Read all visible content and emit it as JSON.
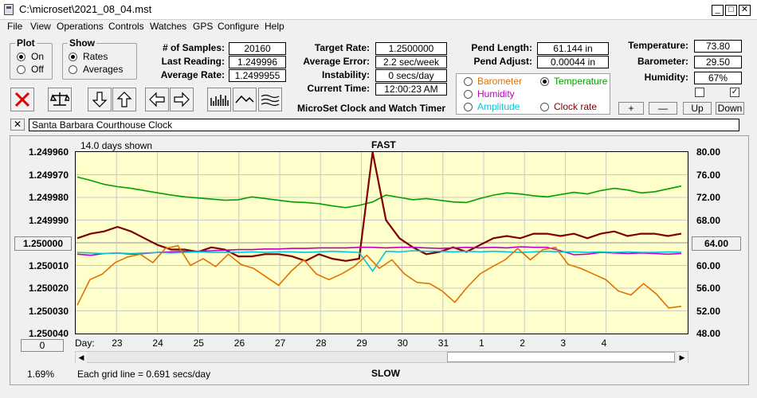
{
  "window": {
    "title": "C:\\microset\\2021_08_04.mst"
  },
  "menu": [
    "File",
    "View",
    "Operations",
    "Controls",
    "Watches",
    "GPS",
    "Configure",
    "Help"
  ],
  "plot_group": {
    "title": "Plot",
    "on": "On",
    "off": "Off",
    "selected": "On"
  },
  "show_group": {
    "title": "Show",
    "rates": "Rates",
    "averages": "Averages",
    "selected": "Rates"
  },
  "stats": {
    "samples_label": "# of Samples:",
    "samples": "20160",
    "last_reading_label": "Last Reading:",
    "last_reading": "1.249996",
    "avg_rate_label": "Average Rate:",
    "avg_rate": "1.2499955",
    "target_rate_label": "Target Rate:",
    "target_rate": "1.2500000",
    "avg_error_label": "Average Error:",
    "avg_error": "2.2 sec/week",
    "instability_label": "Instability:",
    "instability": "0 secs/day",
    "current_time_label": "Current Time:",
    "current_time": "12:00:23 AM",
    "pend_length_label": "Pend Length:",
    "pend_length": "61.144 in",
    "pend_adjust_label": "Pend Adjust:",
    "pend_adjust": "0.00044 in",
    "temperature_label": "Temperature:",
    "temperature": "73.80",
    "barometer_label": "Barometer:",
    "barometer": "29.50",
    "humidity_label": "Humidity:",
    "humidity": "67%"
  },
  "app_subtitle": "MicroSet Clock and Watch Timer",
  "sensor_options": {
    "barometer": "Barometer",
    "temperature": "Temperature",
    "humidity": "Humidity",
    "amplitude": "Amplitude",
    "clock_rate": "Clock rate",
    "selected": "Temperature",
    "colors": {
      "barometer": "#e07000",
      "temperature": "#00a000",
      "humidity": "#c000c0",
      "amplitude": "#00c8d8",
      "clock_rate": "#800000"
    }
  },
  "adjust_buttons": {
    "plus": "+",
    "minus": "—",
    "up": "Up",
    "down": "Down"
  },
  "checkboxes": {
    "left_checked": false,
    "right_checked": true
  },
  "watch_name": "Santa Barbara Courthouse Clock",
  "chart_header": {
    "days_shown": "14.0 days shown",
    "fast": "FAST",
    "slow": "SLOW",
    "percent": "1.69%",
    "grid_note": "Each grid line = 0.691 secs/day",
    "day_label": "Day:",
    "zero_button": "0"
  },
  "chart_data": {
    "type": "line",
    "x_label": "Day:",
    "x_ticks": [
      "23",
      "24",
      "25",
      "26",
      "27",
      "28",
      "29",
      "30",
      "31",
      "1",
      "2",
      "3",
      "4"
    ],
    "left_axis": {
      "ticks": [
        "1.249960",
        "1.249970",
        "1.249980",
        "1.249990",
        "1.250000",
        "1.250010",
        "1.250020",
        "1.250030",
        "1.250040"
      ],
      "center_button": "1.250000",
      "range": [
        1.24996,
        1.25004
      ],
      "inverted": true
    },
    "right_axis": {
      "ticks": [
        "80.00",
        "76.00",
        "72.00",
        "68.00",
        "64.00",
        "60.00",
        "56.00",
        "52.00",
        "48.00"
      ],
      "center_button": "64.00",
      "range": [
        48,
        80
      ]
    },
    "series": [
      {
        "name": "Temperature",
        "color": "#00a000",
        "axis": "right",
        "values": [
          75.6,
          75.0,
          74.3,
          73.9,
          73.6,
          73.2,
          72.8,
          72.4,
          72.1,
          71.9,
          71.7,
          71.5,
          71.6,
          72.1,
          71.8,
          71.5,
          71.2,
          71.1,
          70.9,
          70.5,
          70.2,
          70.6,
          71.2,
          72.4,
          72.0,
          71.6,
          71.8,
          71.5,
          71.2,
          71.1,
          71.8,
          72.4,
          72.8,
          72.6,
          72.3,
          72.1,
          72.5,
          72.9,
          72.6,
          73.2,
          73.6,
          73.3,
          72.8,
          73.0,
          73.5,
          74.0
        ]
      },
      {
        "name": "Clock rate",
        "color": "#800000",
        "axis": "left",
        "values": [
          1.249998,
          1.249996,
          1.249995,
          1.249993,
          1.249995,
          1.249998,
          1.250001,
          1.250003,
          1.250003,
          1.250004,
          1.250002,
          1.250003,
          1.250006,
          1.250006,
          1.250005,
          1.250005,
          1.250006,
          1.250008,
          1.250005,
          1.250007,
          1.250008,
          1.250007,
          1.24996,
          1.24999,
          1.249998,
          1.250002,
          1.250005,
          1.250004,
          1.250002,
          1.250004,
          1.250001,
          1.249998,
          1.249997,
          1.249998,
          1.249996,
          1.249996,
          1.249997,
          1.249996,
          1.249998,
          1.249996,
          1.249995,
          1.249997,
          1.249996,
          1.249996,
          1.249997,
          1.249996
        ]
      },
      {
        "name": "Humidity",
        "color": "#c000c0",
        "axis": "right",
        "values": [
          62.0,
          61.8,
          62.1,
          62.2,
          62.0,
          62.1,
          62.3,
          62.4,
          62.5,
          62.5,
          62.6,
          62.7,
          62.8,
          62.8,
          62.9,
          62.9,
          63.0,
          63.0,
          63.1,
          63.1,
          63.1,
          63.2,
          63.2,
          63.1,
          63.2,
          63.2,
          63.1,
          63.0,
          63.1,
          63.2,
          63.1,
          63.2,
          63.1,
          63.3,
          63.2,
          63.2,
          62.6,
          61.9,
          62.0,
          62.3,
          62.2,
          62.1,
          62.2,
          62.1,
          62.0,
          62.1
        ]
      },
      {
        "name": "Amplitude",
        "color": "#00c8d8",
        "axis": "right",
        "values": [
          62.3,
          62.2,
          62.1,
          62.2,
          62.1,
          62.2,
          62.3,
          62.2,
          62.3,
          62.4,
          62.3,
          62.3,
          62.3,
          62.4,
          62.3,
          62.4,
          62.4,
          62.3,
          62.4,
          62.5,
          62.4,
          62.3,
          59.0,
          62.5,
          62.4,
          62.6,
          62.5,
          62.5,
          62.4,
          62.5,
          62.4,
          62.5,
          62.4,
          62.3,
          62.4,
          62.5,
          62.4,
          62.4,
          62.3,
          62.4,
          62.3,
          62.4,
          62.3,
          62.3,
          62.4,
          62.3
        ]
      },
      {
        "name": "Barometer",
        "color": "#e07000",
        "axis": "right",
        "values": [
          53.0,
          57.5,
          58.5,
          60.5,
          61.5,
          62.0,
          60.5,
          63.0,
          63.5,
          60.0,
          61.2,
          59.8,
          62.0,
          60.2,
          59.5,
          58.0,
          56.5,
          59.0,
          61.0,
          58.5,
          57.5,
          58.5,
          59.8,
          61.8,
          59.5,
          61.0,
          58.5,
          57.0,
          56.8,
          55.5,
          53.5,
          56.2,
          58.5,
          59.8,
          61.0,
          63.0,
          61.0,
          62.8,
          63.2,
          60.2,
          59.5,
          58.5,
          57.5,
          55.5,
          54.8,
          56.8,
          55.0,
          52.5,
          52.8
        ]
      }
    ]
  }
}
